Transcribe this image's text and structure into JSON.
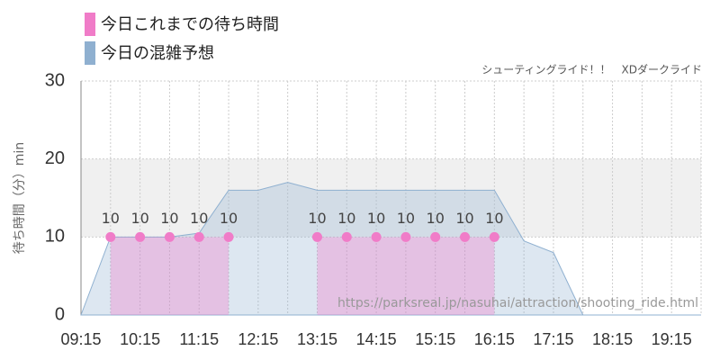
{
  "chart_data": {
    "type": "area",
    "legend_entries": [
      "今日これまでの待ち時間",
      "今日の混雑予想"
    ],
    "subtitle": "シューティングライド！！　XDダークライド",
    "y_label": "待ち時間（分）min",
    "watermark": "https://parksreal.jp/nasuhai/attraction/shooting_ride.html",
    "categories": [
      "09:15",
      null,
      "10:15",
      null,
      "11:15",
      null,
      "12:15",
      null,
      "13:15",
      null,
      "14:15",
      null,
      "15:15",
      null,
      "16:15",
      null,
      "17:15",
      null,
      "18:15",
      null,
      "19:15",
      null
    ],
    "series": [
      {
        "name": "今日これまでの待ち時間",
        "color": "#f07cc8",
        "values": [
          null,
          10,
          10,
          10,
          10,
          10,
          null,
          null,
          10,
          10,
          10,
          10,
          10,
          10,
          10,
          null,
          null,
          null,
          null,
          null,
          null,
          null
        ]
      },
      {
        "name": "今日の混雑予想",
        "color": "#8fb0d0",
        "values": [
          0,
          10,
          10,
          10,
          10.5,
          16,
          16,
          17,
          16,
          16,
          16,
          16,
          16,
          16,
          16,
          9.5,
          8,
          0,
          0,
          0,
          0,
          0
        ]
      }
    ],
    "ylim": [
      0,
      30
    ],
    "yticks": [
      0,
      10,
      20,
      30
    ],
    "band_ylim": [
      10,
      20
    ],
    "band_color": "#f0f0f0",
    "grid": true
  }
}
